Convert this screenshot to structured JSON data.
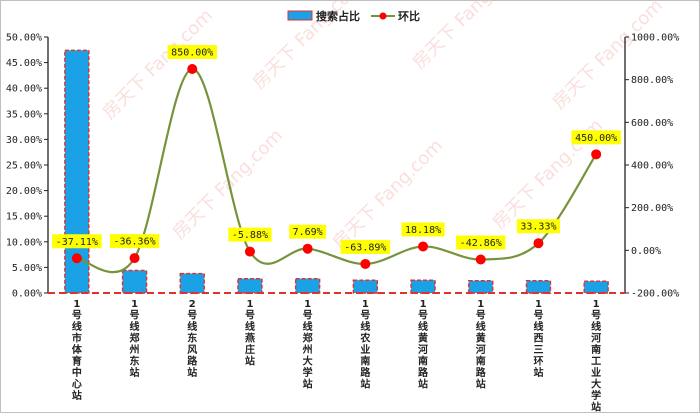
{
  "chart_data": {
    "type": "bar",
    "categories": [
      "1号线市体育中心站",
      "1号线郑州东站",
      "2号线东风路站",
      "1号线燕庄站",
      "1号线郑州大学站",
      "1号线农业南路站",
      "1号线黄河南路站",
      "1号线黄河南路站",
      "1号线西三环站",
      "1号线河南工业大学站"
    ],
    "series": [
      {
        "name": "搜索占比",
        "kind": "bar",
        "axis": "left",
        "values": [
          47.4,
          4.4,
          3.8,
          2.8,
          2.8,
          2.5,
          2.5,
          2.4,
          2.4,
          2.3
        ]
      },
      {
        "name": "环比",
        "kind": "line",
        "axis": "right",
        "values": [
          -37.11,
          -36.36,
          850.0,
          -5.88,
          7.69,
          -63.89,
          18.18,
          -42.86,
          33.33,
          450.0
        ],
        "labels": [
          "-37.11%",
          "-36.36%",
          "850.00%",
          "-5.88%",
          "7.69%",
          "-63.89%",
          "18.18%",
          "-42.86%",
          "33.33%",
          "450.00%"
        ]
      }
    ],
    "y_left": {
      "min": 0,
      "max": 50,
      "ticks": [
        "0.00%",
        "5.00%",
        "10.00%",
        "15.00%",
        "20.00%",
        "25.00%",
        "30.00%",
        "35.00%",
        "40.00%",
        "45.00%",
        "50.00%"
      ]
    },
    "y_right": {
      "min": -200,
      "max": 1000,
      "ticks": [
        "-200.00%",
        "0.00%",
        "200.00%",
        "400.00%",
        "600.00%",
        "800.00%",
        "1000.00%"
      ]
    },
    "legend": {
      "position": "top",
      "items": [
        "搜索占比",
        "环比"
      ]
    },
    "watermark": "房天下 Fang.com",
    "colors": {
      "bar_fill": "#1aa1e6",
      "bar_border": "#e0312d",
      "line": "#77933c",
      "marker": "#ff0000",
      "label_bg": "#ffff00",
      "baseline": "#e0312d"
    },
    "grid": false
  }
}
